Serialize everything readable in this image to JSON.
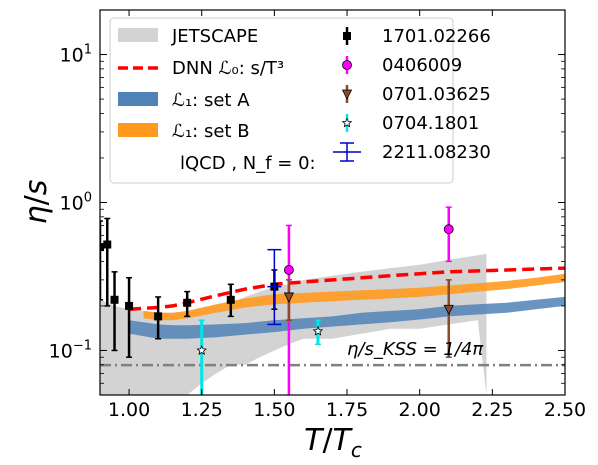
{
  "chart_data": {
    "type": "line",
    "xlabel": "T/T_c",
    "ylabel": "η/s",
    "xlim": [
      0.9,
      2.5
    ],
    "ylim": [
      0.05,
      20
    ],
    "yscale": "log",
    "x_ticks": [
      1.0,
      1.25,
      1.5,
      1.75,
      2.0,
      2.25,
      2.5
    ],
    "x_tick_labels": [
      "1.00",
      "1.25",
      "1.50",
      "1.75",
      "2.00",
      "2.25",
      "2.50"
    ],
    "y_ticks": [
      0.1,
      1,
      10
    ],
    "y_tick_labels": [
      "10⁻¹",
      "10⁰",
      "10¹"
    ],
    "grid": false,
    "legend_position": "top-left",
    "legend_entries": [
      "JETSCAPE",
      "DNN ℒ₀: s/T³",
      "ℒ₁: set A",
      "ℒ₁: set B",
      "lQCD , N_f = 0:",
      "1701.02266",
      "0406009",
      "0701.03625",
      "0704.1801",
      "2211.08230"
    ],
    "annotation": "η/s_KSS = 1/4π",
    "kss_value": 0.0796,
    "colors": {
      "jetscape": "#d3d3d3",
      "dnn": "#ff0000",
      "setA": "#4f83b5",
      "setB": "#ff9a1f",
      "kss": "#808080",
      "s1701": "#000000",
      "s0406": "#ff00ff",
      "s0701": "#8b4a2a",
      "s0704": "#00e5e5",
      "s2211": "#0000c8"
    },
    "jetscape_band": {
      "x": [
        0.9,
        0.95,
        1.0,
        1.05,
        1.1,
        1.15,
        1.2,
        1.25,
        1.3,
        1.35,
        1.4,
        1.45,
        1.5,
        1.55,
        1.6,
        1.7,
        1.8,
        1.9,
        2.0,
        2.1,
        2.2,
        2.23
      ],
      "upper": [
        0.22,
        0.2,
        0.19,
        0.185,
        0.18,
        0.18,
        0.18,
        0.19,
        0.2,
        0.21,
        0.23,
        0.25,
        0.27,
        0.28,
        0.3,
        0.32,
        0.34,
        0.36,
        0.38,
        0.41,
        0.44,
        0.45
      ],
      "lower": [
        0.05,
        0.05,
        0.05,
        0.05,
        0.05,
        0.05,
        0.05,
        0.06,
        0.07,
        0.08,
        0.08,
        0.09,
        0.1,
        0.11,
        0.12,
        0.12,
        0.13,
        0.14,
        0.14,
        0.15,
        0.16,
        0.05
      ]
    },
    "dnn_line": {
      "x": [
        1.0,
        1.1,
        1.15,
        1.2,
        1.3,
        1.4,
        1.5,
        1.6,
        1.7,
        1.8,
        1.9,
        2.0,
        2.1,
        2.2,
        2.3,
        2.4,
        2.5
      ],
      "y": [
        0.19,
        0.195,
        0.2,
        0.21,
        0.235,
        0.26,
        0.28,
        0.29,
        0.3,
        0.31,
        0.32,
        0.33,
        0.34,
        0.345,
        0.35,
        0.355,
        0.36
      ]
    },
    "setA_band": {
      "x": [
        1.0,
        1.05,
        1.1,
        1.15,
        1.2,
        1.3,
        1.4,
        1.5,
        1.6,
        1.7,
        1.8,
        1.9,
        2.0,
        2.1,
        2.2,
        2.3,
        2.4,
        2.5
      ],
      "upper": [
        0.16,
        0.155,
        0.15,
        0.148,
        0.148,
        0.15,
        0.153,
        0.16,
        0.165,
        0.17,
        0.18,
        0.185,
        0.19,
        0.2,
        0.205,
        0.21,
        0.22,
        0.23
      ],
      "lower": [
        0.13,
        0.125,
        0.12,
        0.12,
        0.12,
        0.123,
        0.128,
        0.133,
        0.14,
        0.145,
        0.15,
        0.155,
        0.162,
        0.17,
        0.175,
        0.18,
        0.19,
        0.2
      ]
    },
    "setB_band": {
      "x": [
        1.05,
        1.1,
        1.15,
        1.2,
        1.3,
        1.4,
        1.5,
        1.6,
        1.7,
        1.8,
        1.9,
        2.0,
        2.1,
        2.2,
        2.3,
        2.4,
        2.5
      ],
      "upper": [
        0.185,
        0.18,
        0.18,
        0.185,
        0.205,
        0.225,
        0.24,
        0.245,
        0.25,
        0.255,
        0.26,
        0.265,
        0.275,
        0.285,
        0.295,
        0.31,
        0.33
      ],
      "lower": [
        0.165,
        0.16,
        0.16,
        0.165,
        0.18,
        0.195,
        0.205,
        0.21,
        0.215,
        0.22,
        0.225,
        0.23,
        0.24,
        0.25,
        0.26,
        0.275,
        0.29
      ]
    },
    "points": {
      "s1701": [
        {
          "x": 0.9,
          "y": 0.5,
          "lo": 0.22,
          "hi": 0.75
        },
        {
          "x": 0.925,
          "y": 0.52,
          "lo": 0.2,
          "hi": 0.78
        },
        {
          "x": 0.95,
          "y": 0.22,
          "lo": 0.1,
          "hi": 0.34
        },
        {
          "x": 1.0,
          "y": 0.2,
          "lo": 0.09,
          "hi": 0.31
        },
        {
          "x": 1.1,
          "y": 0.17,
          "lo": 0.12,
          "hi": 0.23
        },
        {
          "x": 1.2,
          "y": 0.21,
          "lo": 0.17,
          "hi": 0.25
        },
        {
          "x": 1.35,
          "y": 0.22,
          "lo": 0.17,
          "hi": 0.28
        },
        {
          "x": 1.5,
          "y": 0.27,
          "lo": 0.19,
          "hi": 0.35
        }
      ],
      "s0406": [
        {
          "x": 1.55,
          "y": 0.35,
          "lo": 0.04,
          "hi": 0.7
        },
        {
          "x": 2.1,
          "y": 0.66,
          "lo": 0.4,
          "hi": 0.93
        }
      ],
      "s0701": [
        {
          "x": 1.55,
          "y": 0.23,
          "lo": 0.16,
          "hi": 0.3
        },
        {
          "x": 2.1,
          "y": 0.19,
          "lo": 0.09,
          "hi": 0.3
        }
      ],
      "s0704": [
        {
          "x": 1.25,
          "y": 0.1,
          "lo": 0.04,
          "hi": 0.16
        },
        {
          "x": 1.65,
          "y": 0.135,
          "lo": 0.11,
          "hi": 0.16
        }
      ],
      "s2211": [
        {
          "x": 1.5,
          "y": 0.27,
          "lo": 0.15,
          "hi": 0.48
        }
      ]
    }
  }
}
